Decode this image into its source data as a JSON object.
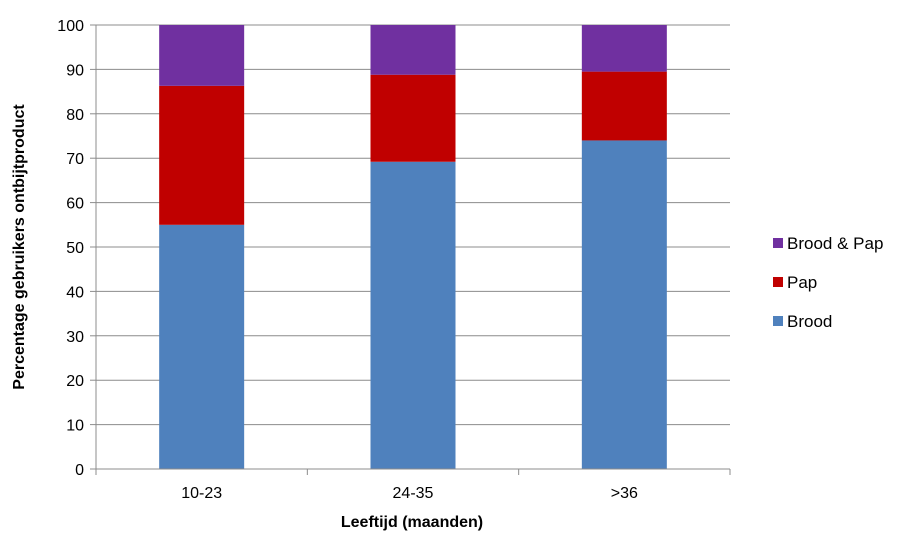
{
  "chart_data": {
    "type": "bar",
    "stacked": true,
    "categories": [
      "10-23",
      "24-35",
      ">36"
    ],
    "series": [
      {
        "name": "Brood",
        "color": "#4f81bd",
        "values": [
          55,
          69.2,
          74
        ]
      },
      {
        "name": "Pap",
        "color": "#c00000",
        "values": [
          31.3,
          19.6,
          15.5
        ]
      },
      {
        "name": "Brood & Pap",
        "color": "#7030a0",
        "values": [
          13.7,
          11.2,
          10.5
        ]
      }
    ],
    "legend_order": [
      "Brood & Pap",
      "Pap",
      "Brood"
    ],
    "xlabel": "Leeftijd (maanden)",
    "ylabel": "Percentage gebruikers ontbijtproduct",
    "ylim": [
      0,
      100
    ],
    "yticks": [
      0,
      10,
      20,
      30,
      40,
      50,
      60,
      70,
      80,
      90,
      100
    ],
    "grid": true,
    "legend_position": "right"
  }
}
